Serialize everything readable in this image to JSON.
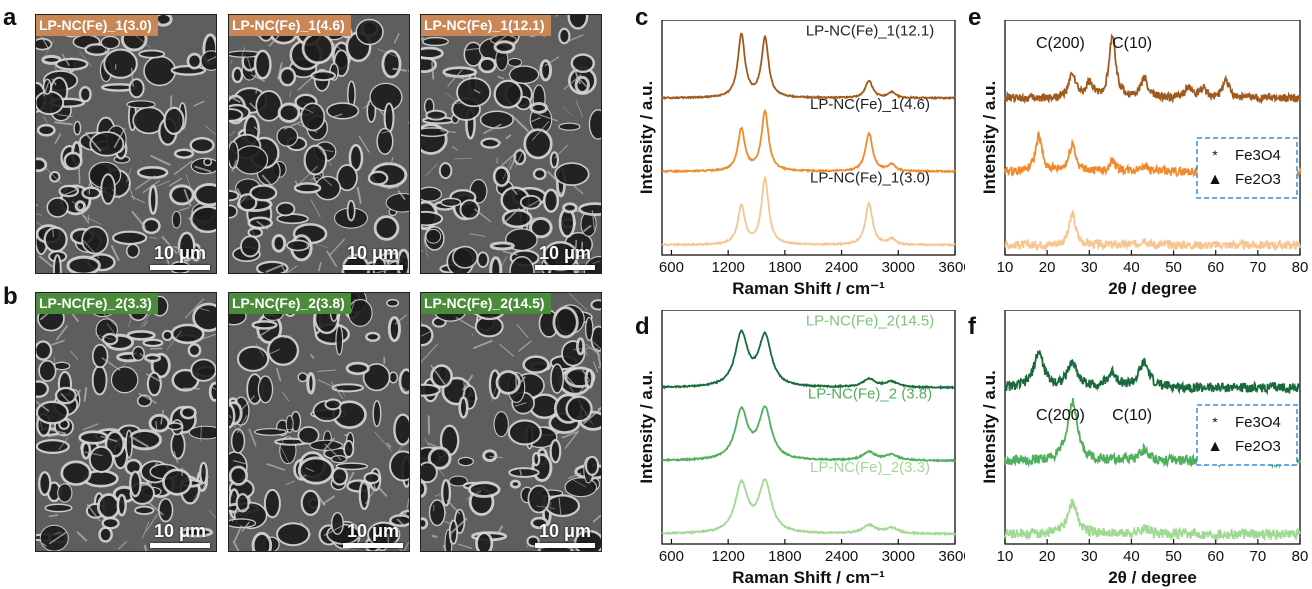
{
  "colors": {
    "brown_dark": "#a05a1e",
    "orange": "#f08a2c",
    "peach": "#f7c592",
    "green_dark": "#1a6a3c",
    "green_mid": "#4faf5c",
    "green_light": "#9fd994",
    "label_brown": "#c88754",
    "label_green": "#4a8c3c",
    "legend_box": "#3a8fd8"
  },
  "panels": {
    "a": {
      "letter": "a",
      "images": [
        {
          "label": "LP-NC(Fe)_1(3.0)",
          "scale": "10 μm"
        },
        {
          "label": "LP-NC(Fe)_1(4.6)",
          "scale": "10 μm"
        },
        {
          "label": "LP-NC(Fe)_1(12.1)",
          "scale": "10 μm"
        }
      ]
    },
    "b": {
      "letter": "b",
      "images": [
        {
          "label": "LP-NC(Fe)_2(3.3)",
          "scale": "10 μm"
        },
        {
          "label": "LP-NC(Fe)_2(3.8)",
          "scale": "10 μm"
        },
        {
          "label": "LP-NC(Fe)_2(14.5)",
          "scale": "10 μm"
        }
      ]
    }
  },
  "chart_data": [
    {
      "panel": "c",
      "type": "line",
      "xlabel": "Raman Shift / cm⁻¹",
      "ylabel": "Intensity / a.u.",
      "xlim": [
        500,
        3600
      ],
      "xticks": [
        600,
        1200,
        1800,
        2400,
        3000,
        3600
      ],
      "series": [
        {
          "name": "LP-NC(Fe)_1(12.1)",
          "color": "#a05a1e",
          "offset": 2,
          "peaks": [
            [
              1340,
              0.9
            ],
            [
              1590,
              0.85
            ],
            [
              2690,
              0.25
            ],
            [
              2930,
              0.08
            ]
          ]
        },
        {
          "name": "LP-NC(Fe)_1(4.6)",
          "color": "#f08a2c",
          "offset": 1,
          "peaks": [
            [
              1340,
              0.6
            ],
            [
              1590,
              0.85
            ],
            [
              2690,
              0.55
            ],
            [
              2930,
              0.1
            ]
          ]
        },
        {
          "name": "LP-NC(Fe)_1(3.0)",
          "color": "#f7c592",
          "offset": 0,
          "peaks": [
            [
              1340,
              0.55
            ],
            [
              1590,
              0.95
            ],
            [
              2690,
              0.6
            ],
            [
              2930,
              0.08
            ]
          ]
        }
      ]
    },
    {
      "panel": "d",
      "type": "line",
      "xlabel": "Raman Shift / cm⁻¹",
      "ylabel": "Intensity / a.u.",
      "xlim": [
        500,
        3600
      ],
      "xticks": [
        600,
        1200,
        1800,
        2400,
        3000,
        3600
      ],
      "series": [
        {
          "name": "LP-NC(Fe)_2(14.5)",
          "color": "#1a6a3c",
          "offset": 2,
          "peaks": [
            [
              1340,
              0.75
            ],
            [
              1590,
              0.72
            ],
            [
              2690,
              0.12
            ],
            [
              2930,
              0.08
            ]
          ]
        },
        {
          "name": "LP-NC(Fe)_2 (3.8)",
          "color": "#4faf5c",
          "offset": 1,
          "peaks": [
            [
              1340,
              0.7
            ],
            [
              1590,
              0.72
            ],
            [
              2690,
              0.12
            ],
            [
              2930,
              0.08
            ]
          ]
        },
        {
          "name": "LP-NC(Fe)_2(3.3)",
          "color": "#9fd994",
          "offset": 0,
          "peaks": [
            [
              1340,
              0.7
            ],
            [
              1590,
              0.72
            ],
            [
              2690,
              0.12
            ],
            [
              2930,
              0.08
            ]
          ]
        }
      ]
    },
    {
      "panel": "e",
      "type": "line",
      "xlabel": "2θ / degree",
      "ylabel": "Intensity / a.u.",
      "xlim": [
        10,
        80
      ],
      "xticks": [
        10,
        20,
        30,
        40,
        50,
        60,
        70,
        80
      ],
      "annotations": [
        "C(200)",
        "C(10)"
      ],
      "legend": [
        {
          "symbol": "*",
          "label": "Fe3O4"
        },
        {
          "symbol": "▲",
          "label": "Fe2O3"
        }
      ],
      "series": [
        {
          "color": "#a05a1e",
          "offset": 2,
          "peaks": [
            [
              26,
              0.35
            ],
            [
              30,
              0.2
            ],
            [
              35.5,
              0.9
            ],
            [
              43,
              0.3
            ],
            [
              53.5,
              0.15
            ],
            [
              57,
              0.15
            ],
            [
              62.5,
              0.25
            ]
          ]
        },
        {
          "color": "#f08a2c",
          "offset": 1,
          "peaks": [
            [
              18,
              0.5
            ],
            [
              26,
              0.4
            ],
            [
              35.5,
              0.15
            ],
            [
              43,
              0.1
            ]
          ]
        },
        {
          "color": "#f7c592",
          "offset": 0,
          "peaks": [
            [
              26,
              0.45
            ],
            [
              43,
              0.08
            ]
          ]
        }
      ]
    },
    {
      "panel": "f",
      "type": "line",
      "xlabel": "2θ / degree",
      "ylabel": "Intensity / a.u.",
      "xlim": [
        10,
        80
      ],
      "xticks": [
        10,
        20,
        30,
        40,
        50,
        60,
        70,
        80
      ],
      "annotations": [
        "C(200)",
        "C(10)"
      ],
      "legend": [
        {
          "symbol": "*",
          "label": "Fe3O4"
        },
        {
          "symbol": "▲",
          "label": "Fe2O3"
        }
      ],
      "series": [
        {
          "color": "#1a6a3c",
          "offset": 2,
          "peaks": [
            [
              18,
              0.5
            ],
            [
              26,
              0.35
            ],
            [
              35.5,
              0.2
            ],
            [
              43,
              0.35
            ]
          ]
        },
        {
          "color": "#4faf5c",
          "offset": 1,
          "peaks": [
            [
              26,
              0.85
            ],
            [
              43,
              0.15
            ]
          ]
        },
        {
          "color": "#9fd994",
          "offset": 0,
          "peaks": [
            [
              26,
              0.45
            ],
            [
              43,
              0.08
            ]
          ]
        }
      ]
    }
  ]
}
